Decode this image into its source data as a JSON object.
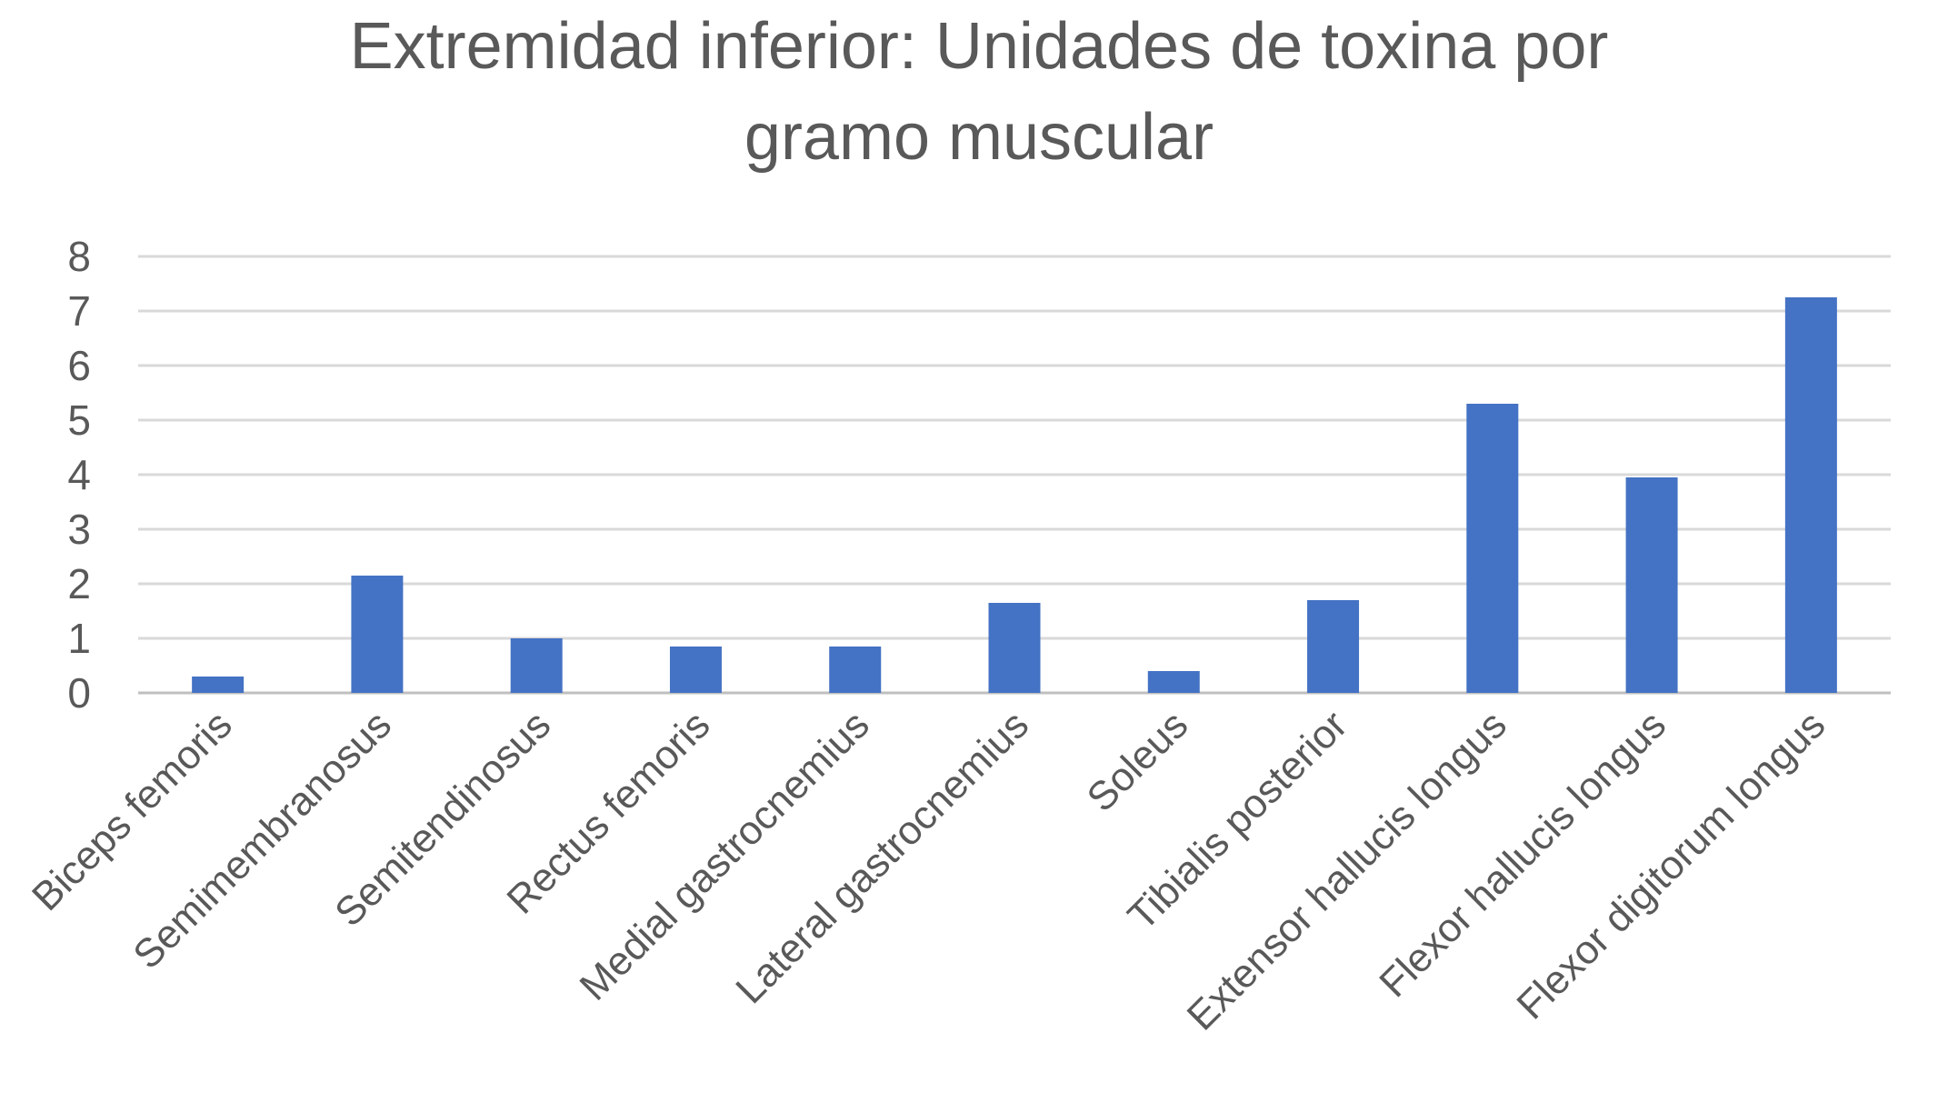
{
  "chart_data": {
    "type": "bar",
    "title": "Extremidad inferior: Unidades de toxina por gramo muscular",
    "title_lines": [
      "Extremidad inferior: Unidades de toxina por",
      "gramo muscular"
    ],
    "categories": [
      "Biceps femoris",
      "Semimembranosus",
      "Semitendinosus",
      "Rectus femoris",
      "Medial gastrocnemius",
      "Lateral gastrocnemius",
      "Soleus",
      "Tibialis posterior",
      "Extensor hallucis longus",
      "Flexor hallucis longus",
      "Flexor digitorum longus"
    ],
    "values": [
      0.3,
      2.15,
      1.0,
      0.85,
      0.85,
      1.65,
      0.4,
      1.7,
      5.3,
      3.95,
      7.25
    ],
    "xlabel": "",
    "ylabel": "",
    "ylim": [
      0,
      8
    ],
    "yticks": [
      0,
      1,
      2,
      3,
      4,
      5,
      6,
      7,
      8
    ],
    "grid": true,
    "legend": "none",
    "bar_color": "#4472c4"
  }
}
